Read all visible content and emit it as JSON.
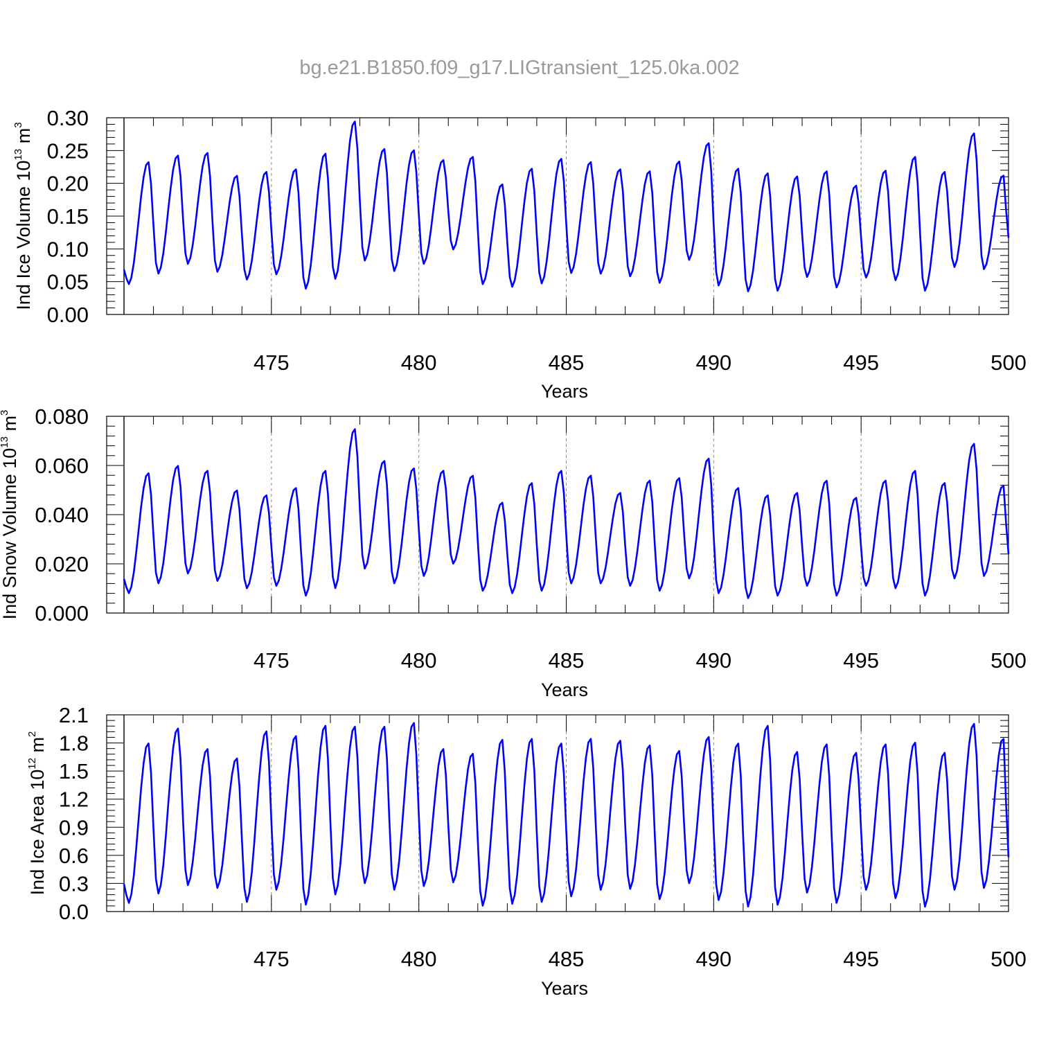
{
  "title": "bg.e21.B1850.f09_g17.LIGtransient_125.0ka.002",
  "chart_data": [
    {
      "type": "line",
      "name": "ice-volume",
      "ylabel_parts": [
        "Ind Ice Volume 10",
        "13",
        " m",
        "3"
      ],
      "xlabel": "Years",
      "xlim": [
        470,
        500
      ],
      "ylim": [
        0,
        0.3
      ],
      "xticks": [
        "475",
        "480",
        "485",
        "490",
        "495",
        "500"
      ],
      "yticks": [
        "0.00",
        "0.05",
        "0.10",
        "0.15",
        "0.20",
        "0.25",
        "0.30"
      ],
      "color": "#0000ff",
      "grid": "dashed vertical at major x ticks",
      "annual_peaks": [
        0.233,
        0.243,
        0.247,
        0.212,
        0.218,
        0.222,
        0.246,
        0.295,
        0.253,
        0.251,
        0.236,
        0.241,
        0.199,
        0.223,
        0.238,
        0.233,
        0.222,
        0.219,
        0.234,
        0.262,
        0.223,
        0.216,
        0.211,
        0.219,
        0.197,
        0.22,
        0.241,
        0.218,
        0.277,
        0.213
      ],
      "annual_troughs": [
        0.046,
        0.062,
        0.077,
        0.065,
        0.053,
        0.061,
        0.039,
        0.054,
        0.082,
        0.066,
        0.077,
        0.099,
        0.046,
        0.042,
        0.047,
        0.063,
        0.062,
        0.058,
        0.048,
        0.083,
        0.044,
        0.035,
        0.036,
        0.057,
        0.041,
        0.056,
        0.052,
        0.036,
        0.072,
        0.069
      ],
      "end_value": 0.117
    },
    {
      "type": "line",
      "name": "snow-volume",
      "ylabel_parts": [
        "Ind Snow Volume 10",
        "13",
        " m",
        "3"
      ],
      "xlabel": "Years",
      "xlim": [
        470,
        500
      ],
      "ylim": [
        0,
        0.08
      ],
      "xticks": [
        "475",
        "480",
        "485",
        "490",
        "495",
        "500"
      ],
      "yticks": [
        "0.000",
        "0.020",
        "0.040",
        "0.060",
        "0.080"
      ],
      "color": "#0000ff",
      "grid": "dashed vertical at major x ticks",
      "annual_peaks": [
        0.057,
        0.06,
        0.058,
        0.05,
        0.048,
        0.051,
        0.058,
        0.075,
        0.062,
        0.059,
        0.058,
        0.056,
        0.045,
        0.053,
        0.058,
        0.056,
        0.049,
        0.054,
        0.055,
        0.063,
        0.051,
        0.048,
        0.049,
        0.054,
        0.047,
        0.054,
        0.058,
        0.053,
        0.069,
        0.052
      ],
      "annual_troughs": [
        0.008,
        0.012,
        0.016,
        0.013,
        0.01,
        0.011,
        0.007,
        0.01,
        0.018,
        0.012,
        0.015,
        0.02,
        0.009,
        0.008,
        0.009,
        0.012,
        0.012,
        0.011,
        0.009,
        0.014,
        0.008,
        0.006,
        0.007,
        0.011,
        0.007,
        0.011,
        0.01,
        0.007,
        0.014,
        0.015
      ],
      "end_value": 0.024
    },
    {
      "type": "line",
      "name": "ice-area",
      "ylabel_parts": [
        "Ind Ice Area 10",
        "12",
        " m",
        "2"
      ],
      "xlabel": "Years",
      "xlim": [
        470,
        500
      ],
      "ylim": [
        0,
        2.1
      ],
      "xticks": [
        "475",
        "480",
        "485",
        "490",
        "495",
        "500"
      ],
      "yticks": [
        "0.0",
        "0.3",
        "0.6",
        "0.9",
        "1.2",
        "1.5",
        "1.8",
        "2.1"
      ],
      "color": "#0000ff",
      "grid": "dashed vertical at major x ticks",
      "annual_peaks": [
        1.8,
        1.96,
        1.74,
        1.64,
        1.93,
        1.88,
        1.99,
        1.98,
        1.98,
        2.02,
        1.74,
        1.69,
        1.84,
        1.85,
        1.8,
        1.85,
        1.83,
        1.78,
        1.72,
        1.87,
        1.8,
        1.99,
        1.71,
        1.79,
        1.7,
        1.79,
        1.81,
        1.7,
        2.01,
        1.86
      ],
      "annual_troughs": [
        0.09,
        0.19,
        0.28,
        0.25,
        0.1,
        0.23,
        0.07,
        0.18,
        0.3,
        0.23,
        0.27,
        0.31,
        0.06,
        0.08,
        0.1,
        0.16,
        0.23,
        0.24,
        0.13,
        0.3,
        0.12,
        0.05,
        0.07,
        0.2,
        0.09,
        0.23,
        0.14,
        0.05,
        0.23,
        0.25
      ],
      "end_value": 0.58
    }
  ]
}
